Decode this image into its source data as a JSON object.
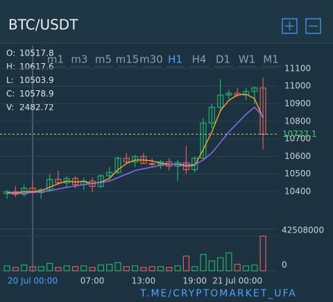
{
  "chart_data": {
    "type": "candlestick",
    "title": "BTC/USDT",
    "timeframes": [
      "m1",
      "m3",
      "m5",
      "m15",
      "m30",
      "H1",
      "H4",
      "D1",
      "W1",
      "M1"
    ],
    "active_timeframe": 5,
    "info": [
      {
        "label": "O:",
        "value": "10517.8"
      },
      {
        "label": "H:",
        "value": "10617.6"
      },
      {
        "label": "L:",
        "value": "10503.9"
      },
      {
        "label": "C:",
        "value": "10578.9"
      },
      {
        "label": "V:",
        "value": "2482.72"
      }
    ],
    "categories": [
      null,
      null,
      null,
      "20 Jul 00:00",
      null,
      null,
      null,
      null,
      null,
      null,
      "07:00",
      null,
      null,
      null,
      null,
      null,
      "13:00",
      null,
      null,
      null,
      null,
      null,
      "19:00",
      null,
      null,
      null,
      null,
      "21 Jul 00:00",
      null,
      null,
      null
    ],
    "open": [
      10390,
      10400,
      10385,
      10420,
      10395,
      10410,
      10470,
      10450,
      10475,
      10440,
      10460,
      10430,
      10490,
      10510,
      10590,
      10570,
      10600,
      10560,
      10555,
      10570,
      10545,
      10565,
      10525,
      10590,
      10790,
      10880,
      10950,
      10960,
      10950,
      10970,
      10990
    ],
    "high": [
      10410,
      10430,
      10440,
      10470,
      10420,
      10500,
      10520,
      10490,
      10490,
      10480,
      10480,
      10500,
      10540,
      10600,
      10620,
      10610,
      10620,
      10590,
      10580,
      10590,
      10580,
      10660,
      10600,
      10820,
      10900,
      11040,
      10980,
      10990,
      10990,
      11000,
      11050
    ],
    "low": [
      10360,
      10370,
      10370,
      10380,
      10360,
      10400,
      10440,
      10420,
      10420,
      10410,
      10400,
      10420,
      10470,
      10500,
      10560,
      10540,
      10560,
      10540,
      10530,
      10520,
      10460,
      10500,
      10510,
      10580,
      10760,
      10850,
      10930,
      10940,
      10920,
      10900,
      10640
    ],
    "close": [
      10400,
      10385,
      10420,
      10395,
      10410,
      10470,
      10450,
      10475,
      10440,
      10460,
      10430,
      10490,
      10510,
      10590,
      10570,
      10600,
      10560,
      10555,
      10570,
      10545,
      10565,
      10525,
      10590,
      10790,
      10880,
      10950,
      10960,
      10950,
      10970,
      10990,
      10727.1
    ],
    "volume": [
      6000000,
      4000000,
      7000000,
      5000000,
      5000000,
      9000000,
      4000000,
      6000000,
      5000000,
      6000000,
      4000000,
      7000000,
      8000000,
      10000000,
      5000000,
      6000000,
      4000000,
      5000000,
      5000000,
      4000000,
      6000000,
      18000000,
      5000000,
      20000000,
      12000000,
      16000000,
      22000000,
      8000000,
      6000000,
      7000000,
      42508000
    ],
    "ma_lines": [
      {
        "color": "#f0a030",
        "values": [
          10395,
          10393,
          10400,
          10400,
          10405,
          10425,
          10445,
          10460,
          10455,
          10458,
          10445,
          10455,
          10475,
          10525,
          10560,
          10580,
          10580,
          10575,
          10562,
          10557,
          10555,
          10545,
          10550,
          10640,
          10740,
          10860,
          10920,
          10950,
          10955,
          10930,
          10820
        ]
      },
      {
        "color": "#8e6cf0",
        "values": [
          10390,
          10390,
          10392,
          10395,
          10398,
          10405,
          10415,
          10425,
          10432,
          10440,
          10448,
          10452,
          10460,
          10480,
          10500,
          10520,
          10530,
          10540,
          10550,
          10555,
          10557,
          10555,
          10555,
          10580,
          10620,
          10680,
          10740,
          10790,
          10840,
          10880,
          10830
        ]
      }
    ],
    "last_price": 10727.1,
    "up_color": "#22b36b",
    "down_color": "#e0625b",
    "ylim": [
      10258,
      11143
    ],
    "yticks": [
      10400,
      10500,
      10600,
      10700,
      10800,
      10900,
      11000,
      11100
    ],
    "y2lim": [
      0,
      46000000
    ],
    "y2ticks": [
      0,
      42508000
    ],
    "grid": true,
    "watermark": "T.ME/CRYPTOMARKET_UFA"
  }
}
